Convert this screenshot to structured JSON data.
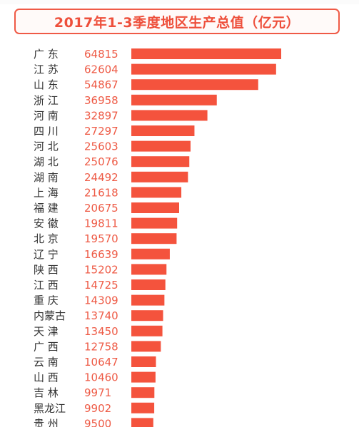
{
  "title": "2017年1-3季度地区生产总值（亿元）",
  "colors": {
    "bar": "#f4533d",
    "value_text": "#ee5a45",
    "label_text": "#333333",
    "title": "#ee4f3b"
  },
  "chart_data": {
    "type": "bar",
    "orientation": "horizontal",
    "title": "2017年1-3季度地区生产总值（亿元）",
    "xlabel": "",
    "ylabel": "",
    "xlim": [
      0,
      64815
    ],
    "grid": false,
    "categories": [
      "广 东",
      "江 苏",
      "山 东",
      "浙 江",
      "河 南",
      "四 川",
      "河 北",
      "湖 北",
      "湖 南",
      "上 海",
      "福 建",
      "安 徽",
      "北 京",
      "辽 宁",
      "陕 西",
      "江 西",
      "重 庆",
      "内蒙古",
      "天 津",
      "广 西",
      "云 南",
      "山 西",
      "吉 林",
      "黑龙江",
      "贵 州"
    ],
    "values": [
      64815,
      62604,
      54867,
      36958,
      32897,
      27297,
      25603,
      25076,
      24492,
      21618,
      20675,
      19811,
      19570,
      16639,
      15202,
      14725,
      14309,
      13740,
      13450,
      12758,
      10647,
      10460,
      9971,
      9902,
      9500
    ]
  }
}
